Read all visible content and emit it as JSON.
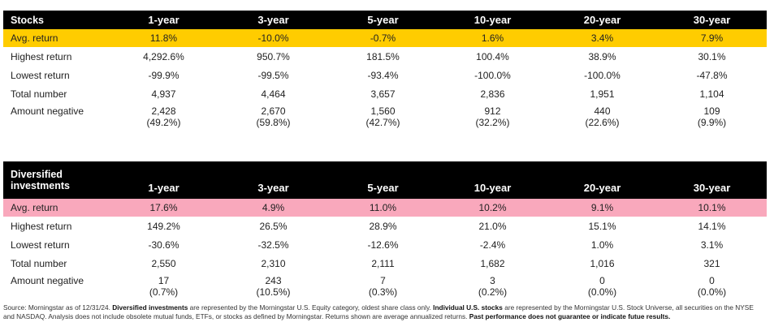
{
  "periods": [
    "1-year",
    "3-year",
    "5-year",
    "10-year",
    "20-year",
    "30-year"
  ],
  "stocks": {
    "title": "Stocks",
    "highlight_color": "#ffcc00",
    "avg_return": {
      "label": "Avg. return",
      "values": [
        "11.8%",
        "-10.0%",
        "-0.7%",
        "1.6%",
        "3.4%",
        "7.9%"
      ]
    },
    "highest_return": {
      "label": "Highest return",
      "values": [
        "4,292.6%",
        "950.7%",
        "181.5%",
        "100.4%",
        "38.9%",
        "30.1%"
      ]
    },
    "lowest_return": {
      "label": "Lowest return",
      "values": [
        "-99.9%",
        "-99.5%",
        "-93.4%",
        "-100.0%",
        "-100.0%",
        "-47.8%"
      ]
    },
    "total_number": {
      "label": "Total number",
      "values": [
        "4,937",
        "4,464",
        "3,657",
        "2,836",
        "1,951",
        "1,104"
      ]
    },
    "amount_negative": {
      "label": "Amount negative",
      "values": [
        "2,428",
        "2,670",
        "1,560",
        "912",
        "440",
        "109"
      ],
      "percents": [
        "(49.2%)",
        "(59.8%)",
        "(42.7%)",
        "(32.2%)",
        "(22.6%)",
        "(9.9%)"
      ]
    }
  },
  "diversified": {
    "title_line1": "Diversified",
    "title_line2": "investments",
    "highlight_color": "#f9a8bc",
    "avg_return": {
      "label": "Avg. return",
      "values": [
        "17.6%",
        "4.9%",
        "11.0%",
        "10.2%",
        "9.1%",
        "10.1%"
      ]
    },
    "highest_return": {
      "label": "Highest return",
      "values": [
        "149.2%",
        "26.5%",
        "28.9%",
        "21.0%",
        "15.1%",
        "14.1%"
      ]
    },
    "lowest_return": {
      "label": "Lowest return",
      "values": [
        "-30.6%",
        "-32.5%",
        "-12.6%",
        "-2.4%",
        "1.0%",
        "3.1%"
      ]
    },
    "total_number": {
      "label": "Total number",
      "values": [
        "2,550",
        "2,310",
        "2,111",
        "1,682",
        "1,016",
        "321"
      ]
    },
    "amount_negative": {
      "label": "Amount negative",
      "values": [
        "17",
        "243",
        "7",
        "3",
        "0",
        "0"
      ],
      "percents": [
        "(0.7%)",
        "(10.5%)",
        "(0.3%)",
        "(0.2%)",
        "(0.0%)",
        "(0.0%)"
      ]
    }
  },
  "footnote": {
    "part1": "Source: Morningstar as of 12/31/24. ",
    "bold1": "Diversified investments",
    "part2": " are represented by the Morningstar U.S. Equity category, oldest share class only. ",
    "bold2": "Individual U.S. stocks",
    "part3": " are represented by the Morningstar U.S. Stock Universe, all securities on the NYSE and NASDAQ. Analysis does not include obsolete mutual funds, ETFs, or stocks as defined by Morningstar. Returns shown are average annualized returns. ",
    "bold3": "Past performance does not guarantee or indicate futue results."
  }
}
